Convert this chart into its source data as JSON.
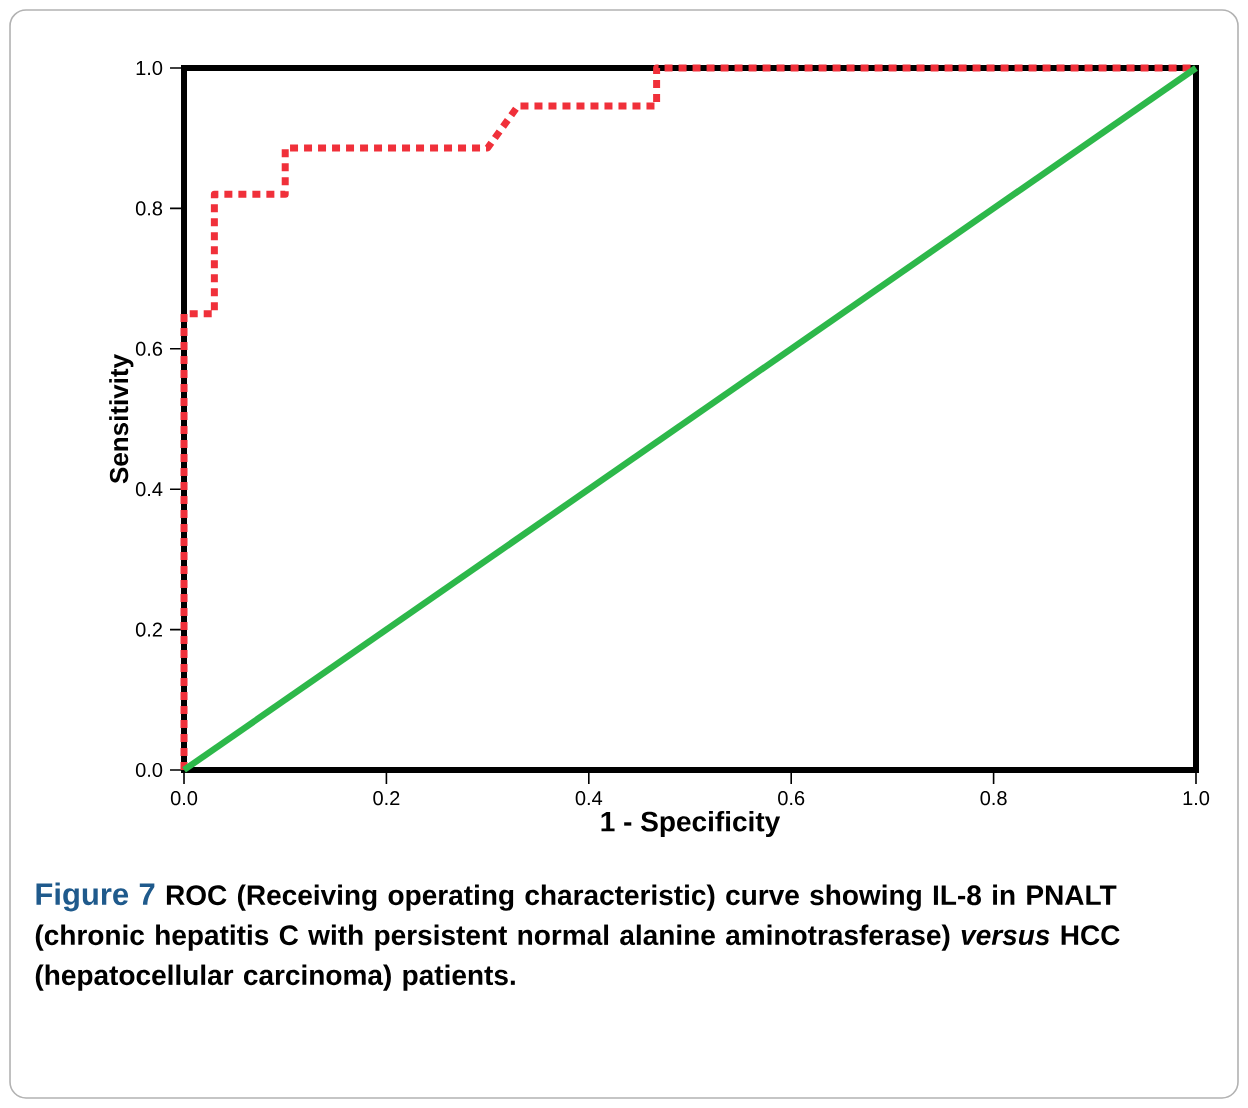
{
  "chart_data": {
    "type": "line",
    "xlabel": "1 - Specificity",
    "ylabel": "Sensitivity",
    "annotations": [
      "Figure 7",
      "ROC (Receiving operating characteristic) curve showing IL-8 in PNALT (chronic hepatitis C with persistent normal alanine aminotrasferase) *versus* HCC (hepatocellular carcinoma) patients."
    ],
    "series": [
      {
        "color": "#f0303a",
        "line_style": "dotted",
        "x": [
          0,
          0,
          0.03,
          0.03,
          0.1,
          0.1,
          0.3,
          0.33,
          0.467,
          0.467,
          1
        ],
        "values": [
          0,
          0.65,
          0.65,
          0.82,
          0.82,
          0.886,
          0.886,
          0.946,
          0.946,
          1,
          1
        ]
      },
      {
        "color": "#2db84a",
        "line_style": "solid",
        "x": [
          0,
          1
        ],
        "values": [
          0,
          1
        ]
      }
    ],
    "xlim": [
      0,
      1
    ],
    "ylim": [
      0,
      1
    ],
    "xticks": [
      {
        "value": 0,
        "label": "0.0"
      },
      0.2,
      0.4,
      0.6,
      0.8,
      {
        "value": 1,
        "label": "1.0"
      }
    ],
    "yticks": [
      {
        "value": 0,
        "label": "0.0"
      },
      0.2,
      0.4,
      0.6,
      0.8,
      {
        "value": 1,
        "label": "1.0"
      }
    ],
    "marker": "none"
  }
}
